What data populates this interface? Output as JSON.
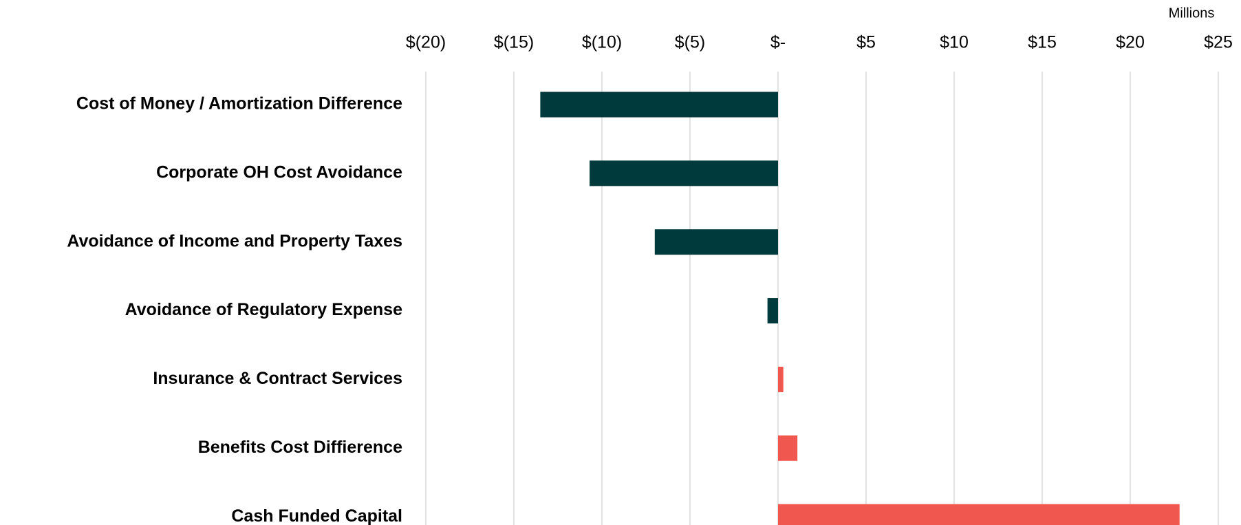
{
  "chart_data": {
    "type": "hbar",
    "x_unit_label": "Millions",
    "categories": [
      "Cost of Money / Amortization Difference",
      "Corporate OH Cost Avoidance",
      "Avoidance of Income and Property Taxes",
      "Avoidance of Regulatory Expense",
      "Insurance & Contract Services",
      "Benefits Cost Diffierence",
      "Cash Funded Capital"
    ],
    "values": [
      -13.5,
      -10.7,
      -7.0,
      -0.6,
      0.3,
      1.1,
      22.8
    ],
    "colors": [
      "#003a3d",
      "#003a3d",
      "#003a3d",
      "#003a3d",
      "#f0584f",
      "#f0584f",
      "#f0584f"
    ],
    "xlim": [
      -20,
      25
    ],
    "xticks": [
      {
        "value": -20,
        "label": "$(20)"
      },
      {
        "value": -15,
        "label": "$(15)"
      },
      {
        "value": -10,
        "label": "$(10)"
      },
      {
        "value": -5,
        "label": "$(5)"
      },
      {
        "value": 0,
        "label": "$-"
      },
      {
        "value": 5,
        "label": "$5"
      },
      {
        "value": 10,
        "label": "$10"
      },
      {
        "value": 15,
        "label": "$15"
      },
      {
        "value": 20,
        "label": "$20"
      },
      {
        "value": 25,
        "label": "$25"
      }
    ],
    "grid": true,
    "axis_position": "top"
  }
}
